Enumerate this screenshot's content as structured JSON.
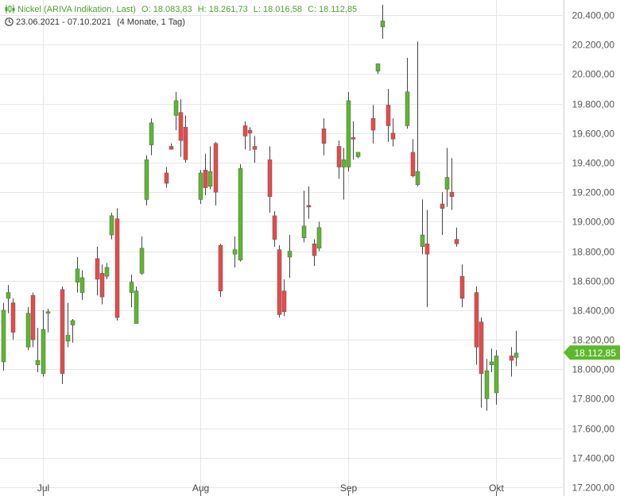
{
  "header": {
    "instrument": "Nickel (ARIVA Indikation, Last)",
    "open": "O: 18.083,83",
    "high": "H: 18.261,73",
    "low": "L: 18.016,58",
    "close": "C: 18.112,85",
    "date_range": "23.06.2021 - 07.10.2021",
    "period": "(4 Monate, 1 Tag)"
  },
  "colors": {
    "up": "#5cb82c",
    "down": "#e84a4a",
    "wick": "#444444",
    "grid": "#e6e6e6",
    "last_badge": "#5cb82c"
  },
  "icons": {
    "candle": "candlestick-icon",
    "clock": "clock-icon"
  },
  "chart_data": {
    "type": "candlestick",
    "y_range": [
      17200,
      20470
    ],
    "y_ticks": [
      "20.400,00",
      "20.200,00",
      "20.000,00",
      "19.800,00",
      "19.600,00",
      "19.400,00",
      "19.200,00",
      "19.000,00",
      "18.800,00",
      "18.600,00",
      "18.400,00",
      "18.200,00",
      "18.000,00",
      "17.800,00",
      "17.600,00",
      "17.400,00",
      "17.200,00"
    ],
    "y_tick_values": [
      20400,
      20200,
      20000,
      19800,
      19600,
      19400,
      19200,
      19000,
      18800,
      18600,
      18400,
      18200,
      18000,
      17800,
      17600,
      17400,
      17200
    ],
    "x_ticks": [
      {
        "label": "Jul",
        "date": "2021-07-01"
      },
      {
        "label": "Aug",
        "date": "2021-08-02"
      },
      {
        "label": "Sep",
        "date": "2021-09-01"
      },
      {
        "label": "Okt",
        "date": "2021-10-01"
      }
    ],
    "last_price_label": "18.112,85",
    "last_price": 18112.85,
    "candles": [
      {
        "date": "2021-06-23",
        "o": 18050,
        "h": 18450,
        "l": 17990,
        "c": 18400
      },
      {
        "date": "2021-06-24",
        "o": 18480,
        "h": 18570,
        "l": 18380,
        "c": 18520
      },
      {
        "date": "2021-06-25",
        "o": 18450,
        "h": 18480,
        "l": 18200,
        "c": 18250
      },
      {
        "date": "2021-06-28",
        "o": 18150,
        "h": 18420,
        "l": 18130,
        "c": 18380
      },
      {
        "date": "2021-06-29",
        "o": 18500,
        "h": 18520,
        "l": 18150,
        "c": 18200
      },
      {
        "date": "2021-06-30",
        "o": 18030,
        "h": 18280,
        "l": 17980,
        "c": 18060
      },
      {
        "date": "2021-07-01",
        "o": 17970,
        "h": 18400,
        "l": 17950,
        "c": 18270
      },
      {
        "date": "2021-07-02",
        "o": 18380,
        "h": 18410,
        "l": 18250,
        "c": 18390
      },
      {
        "date": "2021-07-05",
        "o": 18540,
        "h": 18560,
        "l": 17900,
        "c": 17970
      },
      {
        "date": "2021-07-06",
        "o": 18190,
        "h": 18450,
        "l": 18150,
        "c": 18230
      },
      {
        "date": "2021-07-07",
        "o": 18300,
        "h": 18340,
        "l": 18180,
        "c": 18330
      },
      {
        "date": "2021-07-08",
        "o": 18590,
        "h": 18760,
        "l": 18520,
        "c": 18680
      },
      {
        "date": "2021-07-09",
        "o": 18520,
        "h": 18670,
        "l": 18470,
        "c": 18620
      },
      {
        "date": "2021-07-12",
        "o": 18750,
        "h": 18830,
        "l": 18500,
        "c": 18610
      },
      {
        "date": "2021-07-13",
        "o": 18650,
        "h": 18710,
        "l": 18440,
        "c": 18490
      },
      {
        "date": "2021-07-14",
        "o": 18630,
        "h": 18720,
        "l": 18610,
        "c": 18690
      },
      {
        "date": "2021-07-15",
        "o": 18910,
        "h": 19060,
        "l": 18880,
        "c": 19040
      },
      {
        "date": "2021-07-16",
        "o": 19020,
        "h": 19090,
        "l": 18330,
        "c": 18350
      },
      {
        "date": "2021-07-19",
        "o": 18520,
        "h": 18640,
        "l": 18420,
        "c": 18590
      },
      {
        "date": "2021-07-20",
        "o": 18310,
        "h": 18560,
        "l": 18310,
        "c": 18530
      },
      {
        "date": "2021-07-21",
        "o": 18650,
        "h": 18900,
        "l": 18640,
        "c": 18820
      },
      {
        "date": "2021-07-22",
        "o": 19150,
        "h": 19450,
        "l": 19110,
        "c": 19420
      },
      {
        "date": "2021-07-23",
        "o": 19520,
        "h": 19700,
        "l": 19450,
        "c": 19670
      },
      {
        "date": "2021-07-26",
        "o": 19330,
        "h": 19370,
        "l": 19230,
        "c": 19260
      },
      {
        "date": "2021-07-27",
        "o": 19510,
        "h": 19530,
        "l": 19490,
        "c": 19490
      },
      {
        "date": "2021-07-28",
        "o": 19720,
        "h": 19880,
        "l": 19620,
        "c": 19820
      },
      {
        "date": "2021-07-29",
        "o": 19740,
        "h": 19830,
        "l": 19440,
        "c": 19550
      },
      {
        "date": "2021-07-30",
        "o": 19640,
        "h": 19720,
        "l": 19400,
        "c": 19420
      },
      {
        "date": "2021-08-02",
        "o": 19150,
        "h": 19350,
        "l": 19120,
        "c": 19330
      },
      {
        "date": "2021-08-03",
        "o": 19350,
        "h": 19460,
        "l": 19180,
        "c": 19230
      },
      {
        "date": "2021-08-04",
        "o": 19240,
        "h": 19510,
        "l": 19220,
        "c": 19340
      },
      {
        "date": "2021-08-05",
        "o": 19530,
        "h": 19540,
        "l": 19110,
        "c": 19200
      },
      {
        "date": "2021-08-06",
        "o": 18840,
        "h": 18850,
        "l": 18490,
        "c": 18530
      },
      {
        "date": "2021-08-09",
        "o": 18780,
        "h": 18900,
        "l": 18690,
        "c": 18810
      },
      {
        "date": "2021-08-10",
        "o": 18740,
        "h": 19390,
        "l": 18730,
        "c": 19360
      },
      {
        "date": "2021-08-11",
        "o": 19650,
        "h": 19680,
        "l": 19490,
        "c": 19580
      },
      {
        "date": "2021-08-12",
        "o": 19620,
        "h": 19640,
        "l": 19480,
        "c": 19600
      },
      {
        "date": "2021-08-13",
        "o": 19510,
        "h": 19580,
        "l": 19400,
        "c": 19490
      },
      {
        "date": "2021-08-16",
        "o": 19420,
        "h": 19510,
        "l": 19060,
        "c": 19170
      },
      {
        "date": "2021-08-17",
        "o": 19040,
        "h": 19070,
        "l": 18830,
        "c": 18880
      },
      {
        "date": "2021-08-18",
        "o": 18810,
        "h": 18840,
        "l": 18350,
        "c": 18370
      },
      {
        "date": "2021-08-19",
        "o": 18530,
        "h": 18610,
        "l": 18360,
        "c": 18390
      },
      {
        "date": "2021-08-20",
        "o": 18760,
        "h": 18910,
        "l": 18620,
        "c": 18800
      },
      {
        "date": "2021-08-23",
        "o": 18890,
        "h": 19210,
        "l": 18860,
        "c": 18970
      },
      {
        "date": "2021-08-24",
        "o": 19110,
        "h": 19240,
        "l": 19020,
        "c": 19100
      },
      {
        "date": "2021-08-25",
        "o": 18850,
        "h": 18880,
        "l": 18700,
        "c": 18770
      },
      {
        "date": "2021-08-26",
        "o": 18820,
        "h": 19000,
        "l": 18800,
        "c": 18960
      },
      {
        "date": "2021-08-27",
        "o": 19630,
        "h": 19700,
        "l": 19450,
        "c": 19530
      },
      {
        "date": "2021-08-30",
        "o": 19510,
        "h": 19550,
        "l": 19290,
        "c": 19370
      },
      {
        "date": "2021-08-31",
        "o": 19370,
        "h": 19500,
        "l": 19150,
        "c": 19420
      },
      {
        "date": "2021-09-01",
        "o": 19370,
        "h": 19880,
        "l": 19340,
        "c": 19820
      },
      {
        "date": "2021-09-02",
        "o": 19570,
        "h": 19680,
        "l": 19420,
        "c": 19560
      },
      {
        "date": "2021-09-03",
        "o": 19440,
        "h": 19470,
        "l": 19430,
        "c": 19470
      },
      {
        "date": "2021-09-06",
        "o": 19700,
        "h": 19790,
        "l": 19530,
        "c": 19620
      },
      {
        "date": "2021-09-07",
        "o": 20020,
        "h": 20070,
        "l": 20000,
        "c": 20070
      },
      {
        "date": "2021-09-08",
        "o": 20320,
        "h": 20470,
        "l": 20240,
        "c": 20360
      },
      {
        "date": "2021-09-09",
        "o": 19790,
        "h": 19900,
        "l": 19540,
        "c": 19650
      },
      {
        "date": "2021-09-10",
        "o": 19600,
        "h": 19700,
        "l": 19510,
        "c": 19560
      },
      {
        "date": "2021-09-13",
        "o": 19650,
        "h": 20110,
        "l": 19630,
        "c": 19880
      },
      {
        "date": "2021-09-14",
        "o": 19470,
        "h": 19560,
        "l": 19300,
        "c": 19310
      },
      {
        "date": "2021-09-15",
        "o": 19250,
        "h": 20220,
        "l": 19240,
        "c": 19340
      },
      {
        "date": "2021-09-16",
        "o": 18830,
        "h": 19150,
        "l": 18780,
        "c": 18910
      },
      {
        "date": "2021-09-17",
        "o": 18850,
        "h": 19080,
        "l": 18420,
        "c": 18780
      },
      {
        "date": "2021-09-20",
        "o": 19120,
        "h": 19200,
        "l": 18910,
        "c": 19090
      },
      {
        "date": "2021-09-21",
        "o": 19220,
        "h": 19500,
        "l": 19100,
        "c": 19300
      },
      {
        "date": "2021-09-22",
        "o": 19200,
        "h": 19430,
        "l": 19080,
        "c": 19170
      },
      {
        "date": "2021-09-23",
        "o": 18880,
        "h": 18960,
        "l": 18830,
        "c": 18850
      },
      {
        "date": "2021-09-24",
        "o": 18630,
        "h": 18710,
        "l": 18420,
        "c": 18480
      },
      {
        "date": "2021-09-27",
        "o": 18520,
        "h": 18560,
        "l": 18030,
        "c": 18150
      },
      {
        "date": "2021-09-28",
        "o": 18320,
        "h": 18350,
        "l": 17740,
        "c": 17970
      },
      {
        "date": "2021-09-29",
        "o": 17800,
        "h": 18070,
        "l": 17720,
        "c": 17990
      },
      {
        "date": "2021-09-30",
        "o": 18030,
        "h": 18140,
        "l": 17980,
        "c": 18050
      },
      {
        "date": "2021-10-01",
        "o": 17840,
        "h": 18130,
        "l": 17760,
        "c": 18090
      },
      {
        "date": "2021-10-04",
        "o": 18090,
        "h": 18150,
        "l": 17950,
        "c": 18060
      },
      {
        "date": "2021-10-05",
        "o": 18080,
        "h": 18260,
        "l": 18020,
        "c": 18110
      }
    ]
  }
}
